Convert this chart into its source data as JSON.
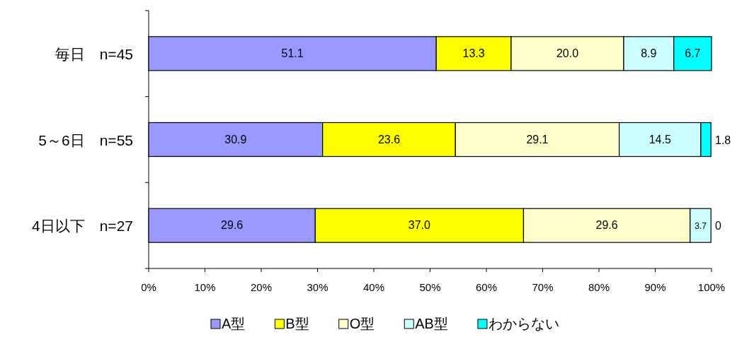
{
  "chart_data": {
    "type": "bar",
    "orientation": "horizontal",
    "stacked": true,
    "legend": "bottom",
    "grid": false,
    "categories": [
      "毎日　n=45",
      "5～6日　n=55",
      "4日以下　n=27"
    ],
    "series": [
      {
        "name": "A型",
        "color": "#9999ff",
        "values": [
          51.1,
          30.9,
          29.6
        ],
        "value_labels": [
          "51.1",
          "30.9",
          "29.6"
        ]
      },
      {
        "name": "B型",
        "color": "#ffff00",
        "values": [
          13.3,
          23.6,
          37.0
        ],
        "value_labels": [
          "13.3",
          "23.6",
          "37.0"
        ]
      },
      {
        "name": "O型",
        "color": "#ffffcc",
        "values": [
          20.0,
          29.1,
          29.6
        ],
        "value_labels": [
          "20.0",
          "29.1",
          "29.6"
        ]
      },
      {
        "name": "AB型",
        "color": "#ccffff",
        "values": [
          8.9,
          14.5,
          3.7
        ],
        "value_labels": [
          "8.9",
          "14.5",
          "3.7"
        ]
      },
      {
        "name": "わからない",
        "color": "#00ffff",
        "values": [
          6.7,
          1.8,
          0
        ],
        "value_labels": [
          "6.7",
          "1.8",
          "0"
        ]
      }
    ],
    "xlim": [
      0,
      100
    ],
    "xticks": [
      {
        "value": 0,
        "label": "0%"
      },
      {
        "value": 10,
        "label": "10%"
      },
      {
        "value": 20,
        "label": "20%"
      },
      {
        "value": 30,
        "label": "30%"
      },
      {
        "value": 40,
        "label": "40%"
      },
      {
        "value": 50,
        "label": "50%"
      },
      {
        "value": 60,
        "label": "60%"
      },
      {
        "value": 70,
        "label": "70%"
      },
      {
        "value": 80,
        "label": "80%"
      },
      {
        "value": 90,
        "label": "90%"
      },
      {
        "value": 100,
        "label": "100%"
      }
    ]
  }
}
